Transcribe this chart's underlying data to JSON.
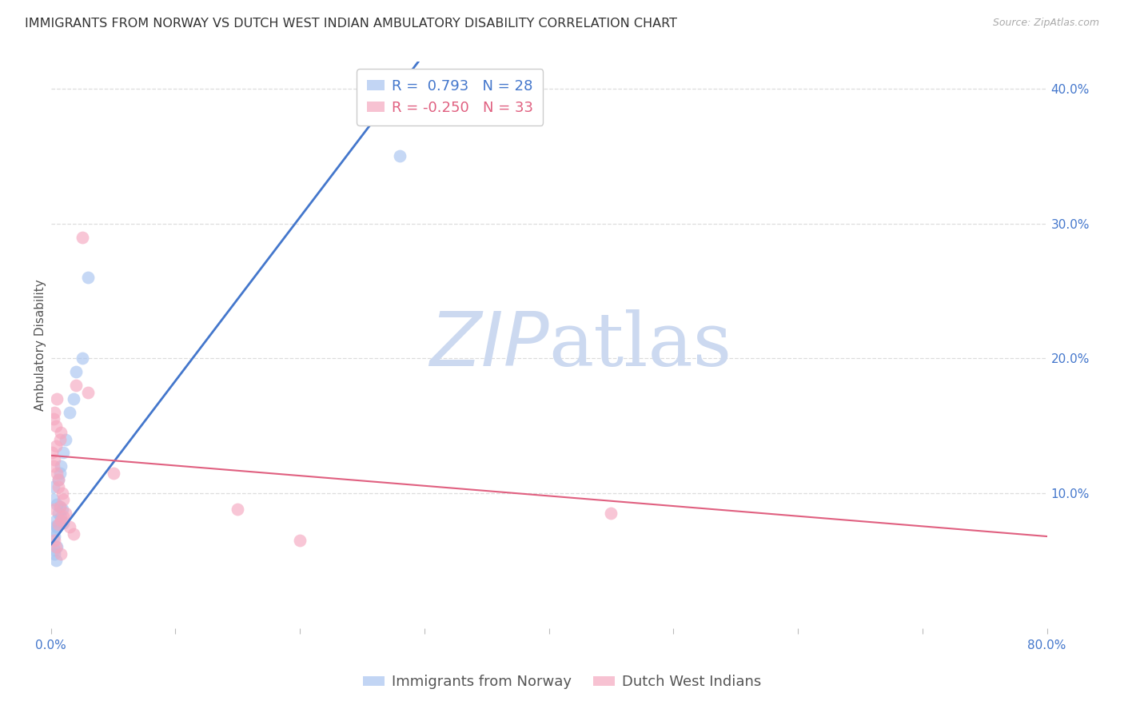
{
  "title": "IMMIGRANTS FROM NORWAY VS DUTCH WEST INDIAN AMBULATORY DISABILITY CORRELATION CHART",
  "source": "Source: ZipAtlas.com",
  "ylabel": "Ambulatory Disability",
  "xlim": [
    0.0,
    0.8
  ],
  "ylim": [
    0.0,
    0.42
  ],
  "norway_R": "0.793",
  "norway_N": 28,
  "dutch_R": "-0.250",
  "dutch_N": 33,
  "norway_color": "#a8c4f0",
  "dutch_color": "#f5a8c0",
  "norway_color_line": "#4477cc",
  "dutch_color_line": "#e06080",
  "norway_scatter_x": [
    0.002,
    0.003,
    0.004,
    0.005,
    0.006,
    0.007,
    0.008,
    0.009,
    0.01,
    0.002,
    0.003,
    0.004,
    0.005,
    0.006,
    0.007,
    0.008,
    0.01,
    0.012,
    0.015,
    0.018,
    0.02,
    0.025,
    0.03,
    0.005,
    0.003,
    0.28,
    0.003,
    0.004
  ],
  "norway_scatter_y": [
    0.095,
    0.068,
    0.08,
    0.075,
    0.085,
    0.09,
    0.082,
    0.088,
    0.078,
    0.105,
    0.072,
    0.076,
    0.092,
    0.11,
    0.115,
    0.12,
    0.13,
    0.14,
    0.16,
    0.17,
    0.19,
    0.2,
    0.26,
    0.06,
    0.058,
    0.35,
    0.055,
    0.05
  ],
  "dutch_scatter_x": [
    0.001,
    0.002,
    0.003,
    0.004,
    0.005,
    0.006,
    0.007,
    0.008,
    0.009,
    0.002,
    0.003,
    0.004,
    0.005,
    0.006,
    0.007,
    0.008,
    0.01,
    0.012,
    0.015,
    0.018,
    0.02,
    0.025,
    0.03,
    0.05,
    0.003,
    0.004,
    0.006,
    0.008,
    0.01,
    0.003,
    0.15,
    0.45,
    0.2
  ],
  "dutch_scatter_y": [
    0.13,
    0.12,
    0.125,
    0.135,
    0.115,
    0.11,
    0.14,
    0.145,
    0.1,
    0.155,
    0.16,
    0.15,
    0.17,
    0.105,
    0.09,
    0.08,
    0.095,
    0.085,
    0.075,
    0.07,
    0.18,
    0.29,
    0.175,
    0.115,
    0.065,
    0.06,
    0.077,
    0.055,
    0.083,
    0.088,
    0.088,
    0.085,
    0.065
  ],
  "norway_trendline_x": [
    0.0,
    0.295
  ],
  "norway_trendline_y": [
    0.062,
    0.42
  ],
  "dutch_trendline_x": [
    0.0,
    0.8
  ],
  "dutch_trendline_y": [
    0.128,
    0.068
  ],
  "watermark_zip": "ZIP",
  "watermark_atlas": "atlas",
  "watermark_color": "#ccd9f0",
  "background_color": "#ffffff",
  "grid_color": "#dddddd",
  "title_fontsize": 11.5,
  "label_fontsize": 11,
  "tick_fontsize": 11,
  "legend_fontsize": 13
}
